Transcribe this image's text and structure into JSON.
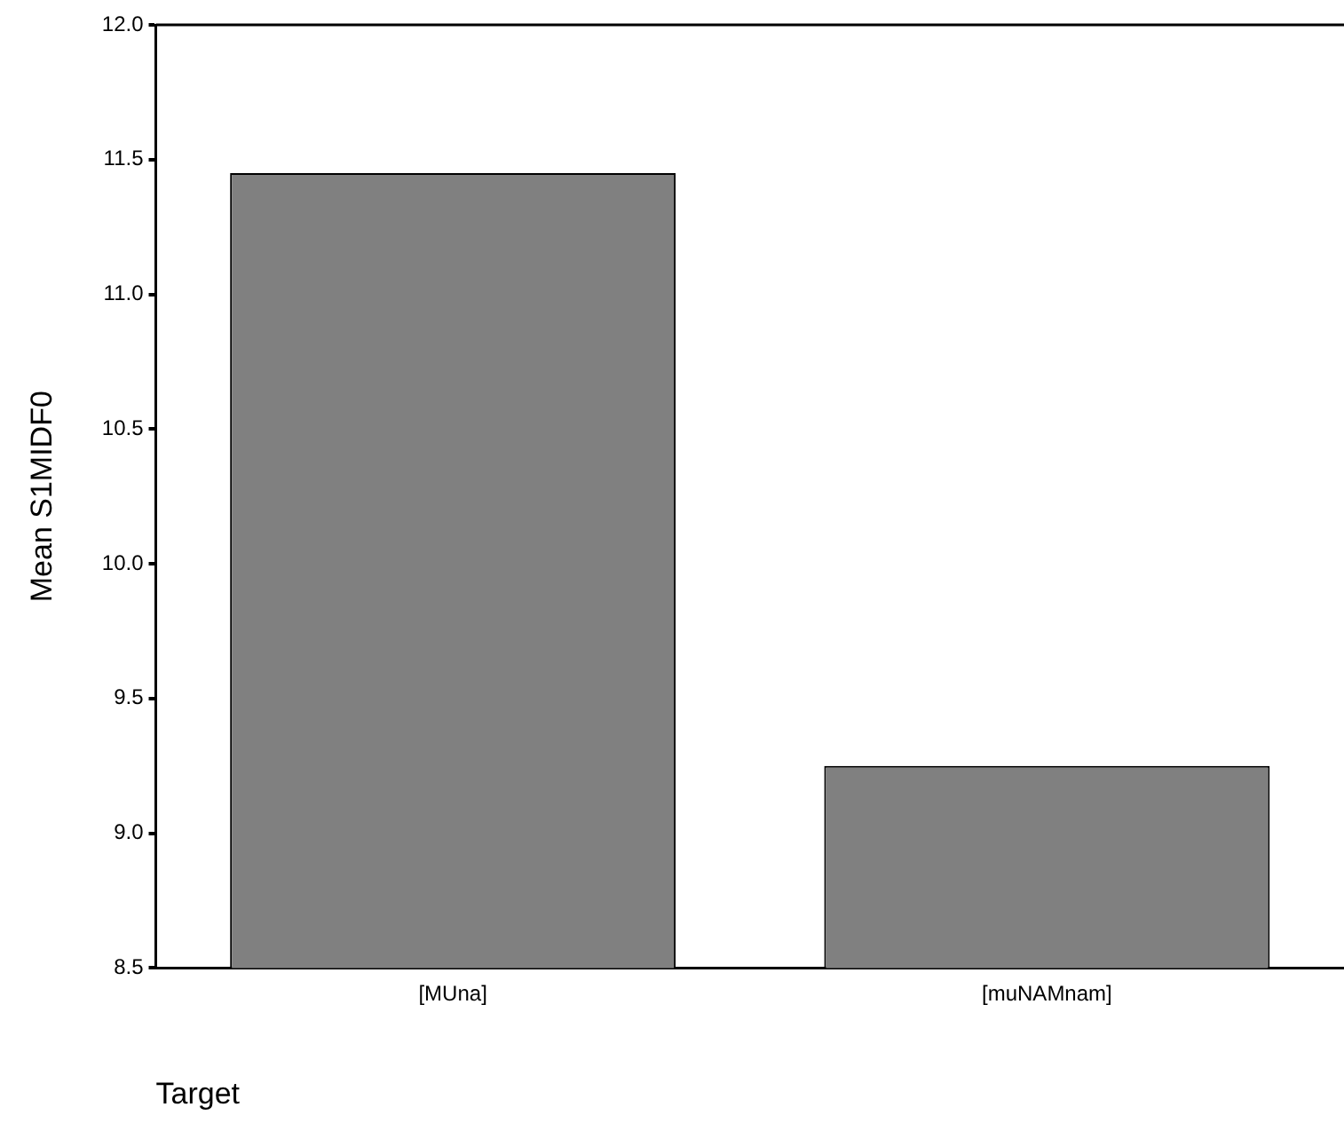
{
  "chart_data": {
    "type": "bar",
    "categories": [
      "[MUna]",
      "[muNAMnam]"
    ],
    "values": [
      11.45,
      9.25
    ],
    "color": "#808080",
    "xlabel": "Target",
    "ylabel": "Mean S1MIDF0",
    "ylim": [
      8.5,
      12.0
    ],
    "yticks": [
      {
        "value": 8.5,
        "label": "8.5"
      },
      {
        "value": 9.0,
        "label": "9.0"
      },
      {
        "value": 9.5,
        "label": "9.5"
      },
      {
        "value": 10.0,
        "label": "10.0"
      },
      {
        "value": 10.5,
        "label": "10.5"
      },
      {
        "value": 11.0,
        "label": "11.0"
      },
      {
        "value": 11.5,
        "label": "11.5"
      },
      {
        "value": 12.0,
        "label": "12.0"
      }
    ],
    "grid": false,
    "legend": false
  }
}
